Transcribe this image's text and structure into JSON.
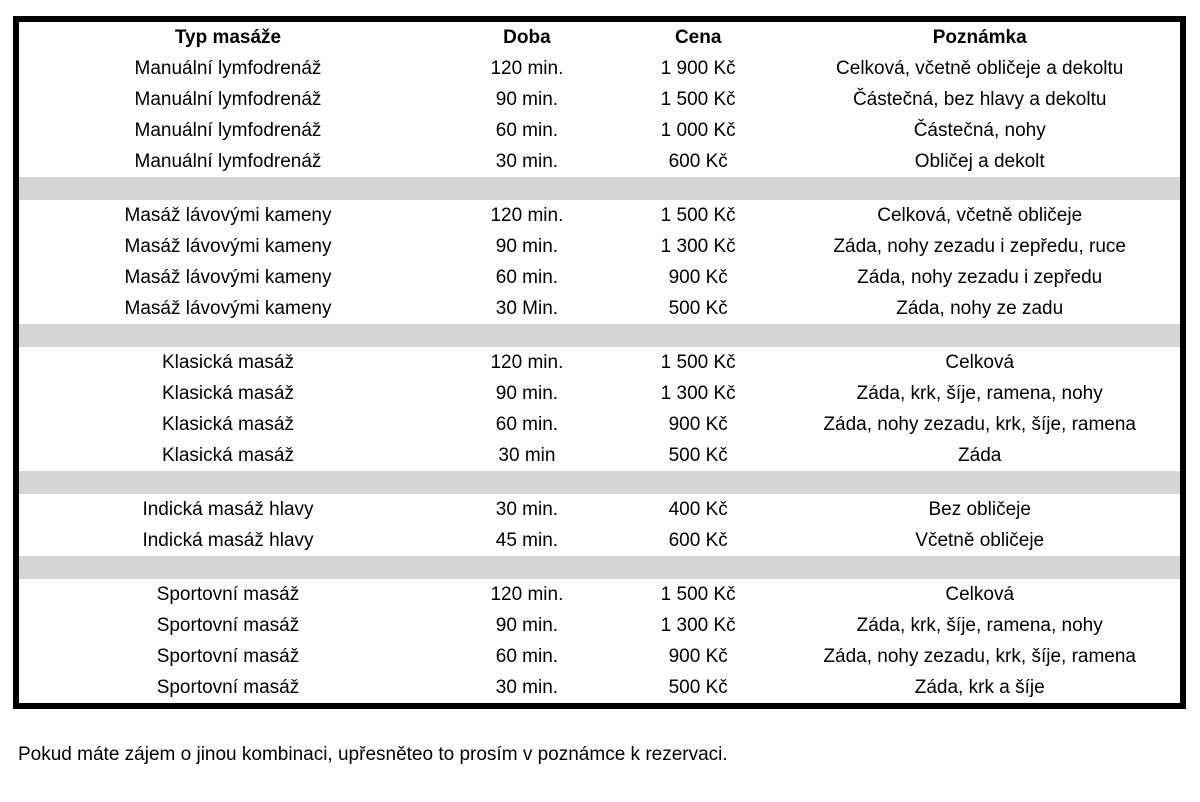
{
  "table": {
    "columns": [
      {
        "label": "Typ masáže"
      },
      {
        "label": "Doba"
      },
      {
        "label": "Cena"
      },
      {
        "label": "Poznámka"
      }
    ],
    "rows": [
      {
        "type": "data",
        "cells": [
          "Manuální lymfodrenáž",
          "120 min.",
          "1 900 Kč",
          "Celková, včetně obličeje a dekoltu"
        ]
      },
      {
        "type": "data",
        "cells": [
          "Manuální lymfodrenáž",
          "90 min.",
          "1 500 Kč",
          "Částečná, bez hlavy a dekoltu"
        ]
      },
      {
        "type": "data",
        "cells": [
          "Manuální lymfodrenáž",
          "60 min.",
          "1 000 Kč",
          "Částečná, nohy"
        ]
      },
      {
        "type": "data",
        "cells": [
          "Manuální lymfodrenáž",
          "30 min.",
          "600 Kč",
          "Obličej a dekolt"
        ]
      },
      {
        "type": "separator"
      },
      {
        "type": "data",
        "cells": [
          "Masáž lávovými kameny",
          "120 min.",
          "1 500 Kč",
          "Celková, včetně obličeje"
        ]
      },
      {
        "type": "data",
        "cells": [
          "Masáž lávovými kameny",
          "90 min.",
          "1 300 Kč",
          "Záda, nohy zezadu i zepředu, ruce"
        ]
      },
      {
        "type": "data",
        "cells": [
          "Masáž lávovými kameny",
          "60 min.",
          "900 Kč",
          "Záda, nohy zezadu i zepředu"
        ]
      },
      {
        "type": "data",
        "cells": [
          "Masáž lávovými kameny",
          "30 Min.",
          "500 Kč",
          "Záda, nohy ze zadu"
        ]
      },
      {
        "type": "separator"
      },
      {
        "type": "data",
        "cells": [
          "Klasická masáž",
          "120 min.",
          "1 500 Kč",
          "Celková"
        ]
      },
      {
        "type": "data",
        "cells": [
          "Klasická masáž",
          "90 min.",
          "1 300 Kč",
          "Záda, krk, šíje, ramena, nohy"
        ]
      },
      {
        "type": "data",
        "cells": [
          "Klasická masáž",
          "60 min.",
          "900 Kč",
          "Záda, nohy zezadu, krk, šíje, ramena"
        ]
      },
      {
        "type": "data",
        "cells": [
          "Klasická masáž",
          "30 min",
          "500 Kč",
          "Záda"
        ]
      },
      {
        "type": "separator"
      },
      {
        "type": "data",
        "cells": [
          "Indická masáž hlavy",
          "30 min.",
          "400 Kč",
          "Bez obličeje"
        ]
      },
      {
        "type": "data",
        "cells": [
          "Indická masáž hlavy",
          "45 min.",
          "600 Kč",
          "Včetně obličeje"
        ]
      },
      {
        "type": "separator"
      },
      {
        "type": "data",
        "cells": [
          "Sportovní masáž",
          "120 min.",
          "1 500 Kč",
          "Celková"
        ]
      },
      {
        "type": "data",
        "cells": [
          "Sportovní masáž",
          "90 min.",
          "1 300 Kč",
          "Záda, krk, šíje, ramena, nohy"
        ]
      },
      {
        "type": "data",
        "cells": [
          "Sportovní masáž",
          "60 min.",
          "900 Kč",
          "Záda, nohy zezadu, krk, šíje, ramena"
        ]
      },
      {
        "type": "data",
        "cells": [
          "Sportovní masáž",
          "30 min.",
          "500 Kč",
          "Záda, krk a šíje"
        ]
      }
    ]
  },
  "footer": {
    "note": "Pokud máte zájem o jinou kombinaci, upřesněteo to prosím v poznámce k rezervaci."
  },
  "colors": {
    "border_black": "#000000",
    "separator_gray": "#d6d6d6",
    "background": "#ffffff",
    "text": "#000000"
  }
}
